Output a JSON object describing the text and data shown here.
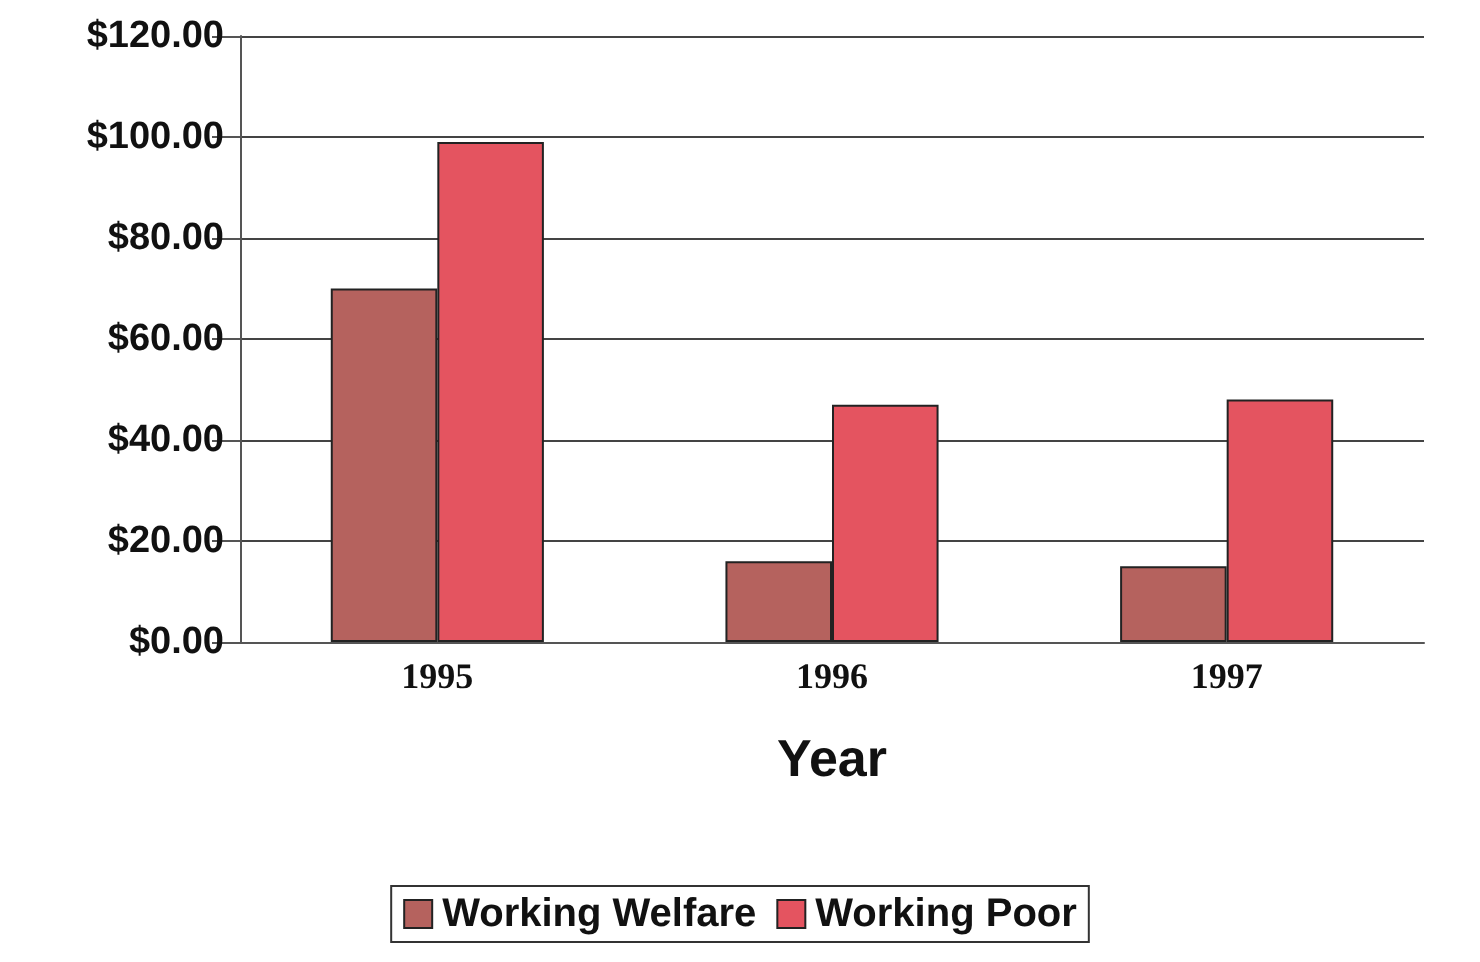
{
  "chart_data": {
    "type": "bar",
    "xlabel": "Year",
    "categories": [
      "1995",
      "1996",
      "1997"
    ],
    "series": [
      {
        "name": "Working Welfare",
        "color": "#b5625e",
        "values": [
          70,
          16,
          15
        ]
      },
      {
        "name": "Working Poor",
        "color": "#e45460",
        "values": [
          99,
          47,
          48
        ]
      }
    ],
    "ylim": [
      0,
      120
    ],
    "yticks": [
      {
        "value": 0,
        "label": "$0.00"
      },
      {
        "value": 20,
        "label": "$20.00"
      },
      {
        "value": 40,
        "label": "$40.00"
      },
      {
        "value": 60,
        "label": "$60.00"
      },
      {
        "value": 80,
        "label": "$80.00"
      },
      {
        "value": 100,
        "label": "$100.00"
      },
      {
        "value": 120,
        "label": "$120.00"
      }
    ],
    "grid": "y",
    "legend": "bottom"
  }
}
